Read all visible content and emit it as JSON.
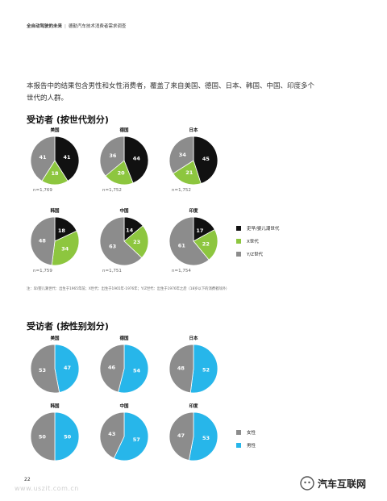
{
  "header": {
    "left": "全自动驾驶的未来",
    "right": "德勤汽车技术消费者需求调查"
  },
  "intro": "本报告中的结果包含男性和女性消费者，覆盖了来自美国、德国、日本、韩国、中国、印度多个世代的人群。",
  "colors": {
    "black": "#111111",
    "green": "#8dc63f",
    "gray": "#8c8c8c",
    "blue": "#27b6ea"
  },
  "generation": {
    "title": "受访者 (按世代划分)",
    "legend": [
      "吏早/婴儿潮世代",
      "X世代",
      "Y/Z世代"
    ],
    "note": "注：早/婴儿潮世代：出生于1965年前；X世代：出生于1965年-1976年；Y/Z世代：出生于1976年之后（18岁以下的消费者除外）",
    "countries": [
      {
        "name": "美国",
        "n": "n=1,769"
      },
      {
        "name": "德国",
        "n": "n=1,752"
      },
      {
        "name": "日本",
        "n": "n=1,752"
      },
      {
        "name": "韩国",
        "n": "n=1,759"
      },
      {
        "name": "中国",
        "n": "n=1,751"
      },
      {
        "name": "印度",
        "n": "n=1,754"
      }
    ]
  },
  "gender": {
    "title": "受访者 (按性别划分)",
    "legend": [
      "女性",
      "男性"
    ],
    "countries": [
      {
        "name": "美国"
      },
      {
        "name": "德国"
      },
      {
        "name": "日本"
      },
      {
        "name": "韩国"
      },
      {
        "name": "中国"
      },
      {
        "name": "印度"
      }
    ]
  },
  "page_number": "22",
  "watermark_left": "www.uszit.com.cn",
  "watermark_right": "汽车互联网",
  "chart_data": [
    {
      "type": "pie",
      "title": "受访者 (按世代划分)",
      "series_names": [
        "吏早/婴儿潮世代",
        "X世代",
        "Y/Z世代"
      ],
      "series_colors": [
        "#111111",
        "#8dc63f",
        "#8c8c8c"
      ],
      "pies": [
        {
          "category": "美国",
          "values": [
            41,
            18,
            41
          ]
        },
        {
          "category": "德国",
          "values": [
            44,
            20,
            36
          ]
        },
        {
          "category": "日本",
          "values": [
            45,
            21,
            34
          ]
        },
        {
          "category": "韩国",
          "values": [
            18,
            34,
            48
          ]
        },
        {
          "category": "中国",
          "values": [
            14,
            23,
            63
          ]
        },
        {
          "category": "印度",
          "values": [
            17,
            22,
            61
          ]
        }
      ],
      "legend_position": "right"
    },
    {
      "type": "pie",
      "title": "受访者 (按性别划分)",
      "series_names": [
        "男性",
        "女性"
      ],
      "series_colors": [
        "#27b6ea",
        "#8c8c8c"
      ],
      "pies": [
        {
          "category": "美国",
          "values": [
            47,
            53
          ]
        },
        {
          "category": "德国",
          "values": [
            54,
            46
          ]
        },
        {
          "category": "日本",
          "values": [
            52,
            48
          ]
        },
        {
          "category": "韩国",
          "values": [
            50,
            50
          ]
        },
        {
          "category": "中国",
          "values": [
            57,
            43
          ]
        },
        {
          "category": "印度",
          "values": [
            53,
            47
          ]
        }
      ],
      "legend_position": "right"
    }
  ]
}
